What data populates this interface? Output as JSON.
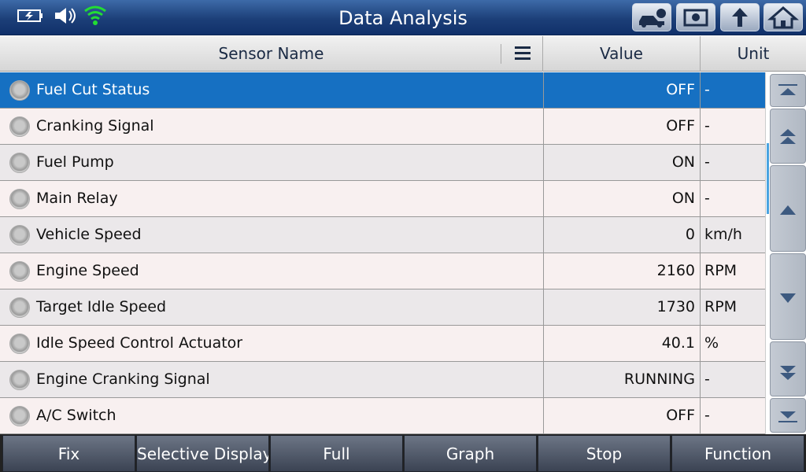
{
  "header": {
    "title": "Data Analysis"
  },
  "table": {
    "columns": [
      "Sensor Name",
      "Value",
      "Unit"
    ],
    "rows": [
      [
        "Fuel Cut Status",
        "OFF",
        "-"
      ],
      [
        "Cranking Signal",
        "OFF",
        "-"
      ],
      [
        "Fuel Pump",
        "ON",
        "-"
      ],
      [
        "Main Relay",
        "ON",
        "-"
      ],
      [
        "Vehicle Speed",
        0,
        "km/h"
      ],
      [
        "Engine Speed",
        2160,
        "RPM"
      ],
      [
        "Target Idle Speed",
        1730,
        "RPM"
      ],
      [
        "Idle Speed Control Actuator",
        40.1,
        "%"
      ],
      [
        "Engine Cranking Signal",
        "RUNNING",
        "-"
      ],
      [
        "A/C Switch",
        "OFF",
        "-"
      ]
    ],
    "selected_row": 0
  },
  "toolbar": {
    "buttons": [
      "Fix",
      "Selective Display",
      "Full",
      "Graph",
      "Stop",
      "Function"
    ]
  }
}
